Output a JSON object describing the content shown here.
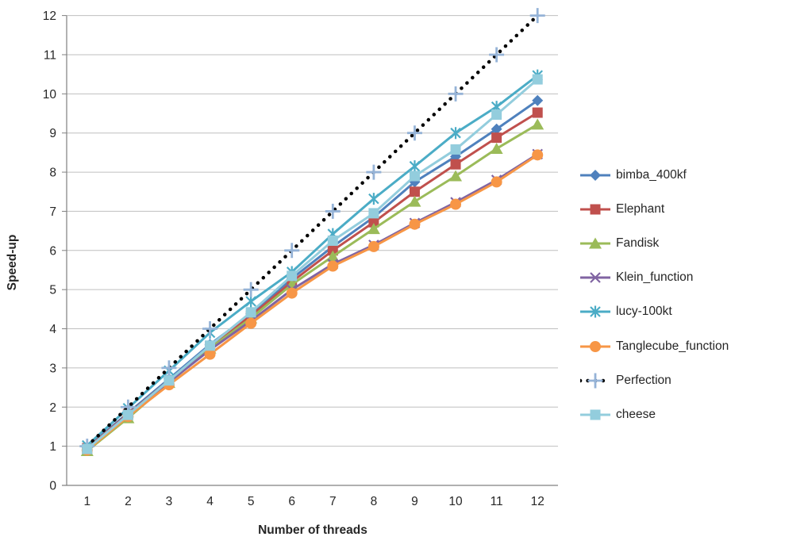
{
  "chart_data": {
    "type": "line",
    "title": "",
    "xlabel": "Number of threads",
    "ylabel": "Speed-up",
    "x": [
      1,
      2,
      3,
      4,
      5,
      6,
      7,
      8,
      9,
      10,
      11,
      12
    ],
    "xticks": [
      "1",
      "2",
      "3",
      "4",
      "5",
      "6",
      "7",
      "8",
      "9",
      "10",
      "11",
      "12"
    ],
    "yticks": [
      "0",
      "1",
      "2",
      "3",
      "4",
      "5",
      "6",
      "7",
      "8",
      "9",
      "10",
      "11",
      "12"
    ],
    "ylim": [
      0,
      12
    ],
    "grid": "horizontal",
    "legend_position": "right",
    "gridline_color": "#BFBFBF",
    "axis_color": "#808080",
    "tick_label_color": "#262626",
    "series": [
      {
        "name": "bimba_400kf",
        "color": "#4F81BD",
        "marker": "diamond",
        "line_style": "solid",
        "values": [
          0.97,
          1.85,
          2.72,
          3.6,
          4.38,
          5.28,
          6.1,
          6.85,
          7.75,
          8.4,
          9.1,
          9.83
        ]
      },
      {
        "name": "Elephant",
        "color": "#C0504D",
        "marker": "square",
        "line_style": "solid",
        "values": [
          0.95,
          1.82,
          2.68,
          3.56,
          4.33,
          5.2,
          6.0,
          6.72,
          7.5,
          8.2,
          8.88,
          9.52
        ]
      },
      {
        "name": "Fandisk",
        "color": "#9BBB59",
        "marker": "triangle",
        "line_style": "solid",
        "values": [
          0.88,
          1.72,
          2.62,
          3.5,
          4.27,
          5.13,
          5.85,
          6.55,
          7.25,
          7.9,
          8.6,
          9.22
        ]
      },
      {
        "name": "Klein_function",
        "color": "#8064A2",
        "marker": "x",
        "line_style": "solid",
        "values": [
          0.93,
          1.8,
          2.64,
          3.46,
          4.2,
          5.0,
          5.65,
          6.14,
          6.7,
          7.23,
          7.8,
          8.46
        ]
      },
      {
        "name": "lucy-100kt",
        "color": "#4BACC6",
        "marker": "star",
        "line_style": "solid",
        "values": [
          1.02,
          1.97,
          2.93,
          3.9,
          4.7,
          5.45,
          6.42,
          7.32,
          8.15,
          9.0,
          9.67,
          10.47
        ]
      },
      {
        "name": "Tanglecube_function",
        "color": "#F79646",
        "marker": "circle",
        "line_style": "solid",
        "values": [
          0.9,
          1.76,
          2.57,
          3.35,
          4.14,
          4.91,
          5.6,
          6.1,
          6.67,
          7.18,
          7.75,
          8.44
        ]
      },
      {
        "name": "Perfection",
        "color": "#000000",
        "marker": "plus",
        "line_style": "dotted",
        "marker_color": "#95B3D7",
        "values": [
          1,
          2,
          3,
          4,
          5,
          6,
          7,
          8,
          9,
          10,
          11,
          12
        ]
      },
      {
        "name": "cheese",
        "color": "#93CDDD",
        "marker": "square",
        "line_style": "solid",
        "values": [
          0.93,
          1.8,
          2.68,
          3.57,
          4.42,
          5.35,
          6.25,
          6.95,
          7.9,
          8.58,
          9.47,
          10.37
        ]
      }
    ]
  }
}
